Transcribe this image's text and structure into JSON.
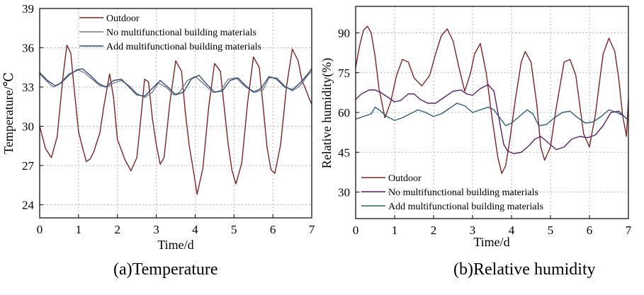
{
  "figure": {
    "caption_a": "(a)Temperature",
    "caption_b": "(b)Relative humidity"
  },
  "colors": {
    "outdoor": "#7b2626",
    "no_materials_a": "#7a7a8a",
    "add_materials_a": "#2e4a78",
    "no_materials_b": "#5c1f6e",
    "add_materials_b": "#2f5f73",
    "grid": "#b5b5b5"
  },
  "chart_data": [
    {
      "type": "line",
      "title": "",
      "xlabel": "Time/d",
      "ylabel": "Temperature/℃",
      "xlim": [
        0,
        7
      ],
      "ylim": [
        23,
        39
      ],
      "xticks": [
        "0",
        "1",
        "2",
        "3",
        "4",
        "5",
        "6",
        "7"
      ],
      "yticks": [
        "24",
        "27",
        "30",
        "33",
        "36",
        "39"
      ],
      "grid": true,
      "legend_position": "top-center",
      "series": [
        {
          "name": "Outdoor",
          "x": [
            0,
            0.15,
            0.3,
            0.45,
            0.6,
            0.7,
            0.8,
            0.9,
            1.0,
            1.1,
            1.2,
            1.3,
            1.4,
            1.45,
            1.55,
            1.65,
            1.8,
            1.9,
            2.0,
            2.1,
            2.2,
            2.35,
            2.5,
            2.6,
            2.7,
            2.8,
            2.9,
            3.0,
            3.1,
            3.2,
            3.35,
            3.5,
            3.65,
            3.75,
            3.85,
            3.95,
            4.05,
            4.2,
            4.35,
            4.5,
            4.65,
            4.75,
            4.85,
            4.95,
            5.05,
            5.2,
            5.35,
            5.5,
            5.65,
            5.75,
            5.85,
            5.95,
            6.05,
            6.2,
            6.35,
            6.5,
            6.65,
            6.75,
            6.85,
            6.95,
            7.0
          ],
          "values": [
            30.0,
            28.3,
            27.6,
            29.2,
            33.8,
            36.2,
            35.6,
            32.5,
            29.6,
            28.4,
            27.3,
            27.5,
            28.1,
            28.6,
            29.5,
            31.5,
            34.0,
            32.2,
            29.0,
            28.2,
            27.4,
            26.6,
            27.6,
            30.5,
            33.6,
            33.4,
            30.6,
            28.6,
            27.1,
            27.6,
            31.8,
            35.0,
            34.2,
            31.0,
            28.5,
            26.7,
            24.8,
            26.8,
            31.5,
            34.8,
            34.2,
            31.4,
            28.6,
            26.6,
            25.6,
            27.2,
            31.8,
            35.3,
            34.5,
            31.5,
            28.4,
            26.7,
            26.4,
            28.6,
            33.0,
            35.9,
            35.0,
            33.5,
            32.8,
            32.0,
            31.7
          ]
        },
        {
          "name": "No multifunctional building materials",
          "x": [
            0,
            0.2,
            0.35,
            0.5,
            0.75,
            1.0,
            1.15,
            1.35,
            1.55,
            1.75,
            1.9,
            2.1,
            2.3,
            2.5,
            2.7,
            2.9,
            3.05,
            3.25,
            3.45,
            3.6,
            3.8,
            4.0,
            4.2,
            4.45,
            4.65,
            4.85,
            5.05,
            5.3,
            5.55,
            5.75,
            5.9,
            6.1,
            6.3,
            6.5,
            6.7,
            6.9,
            7.0
          ],
          "values": [
            34.0,
            33.4,
            33.0,
            33.2,
            34.0,
            34.3,
            34.1,
            33.6,
            33.1,
            33.0,
            33.3,
            33.5,
            33.1,
            32.5,
            32.2,
            32.6,
            33.3,
            33.0,
            32.4,
            32.6,
            33.5,
            33.8,
            33.3,
            32.6,
            32.7,
            33.6,
            33.7,
            33.0,
            32.6,
            32.8,
            33.7,
            33.7,
            33.1,
            32.7,
            33.1,
            33.9,
            34.2
          ]
        },
        {
          "name": "Add multifunctional building materials",
          "x": [
            0,
            0.2,
            0.4,
            0.55,
            0.75,
            0.95,
            1.1,
            1.3,
            1.5,
            1.7,
            1.9,
            2.1,
            2.3,
            2.5,
            2.7,
            2.9,
            3.1,
            3.3,
            3.5,
            3.7,
            3.9,
            4.1,
            4.3,
            4.5,
            4.7,
            4.9,
            5.1,
            5.3,
            5.5,
            5.7,
            5.9,
            6.1,
            6.3,
            6.5,
            6.7,
            6.9,
            7.0
          ],
          "values": [
            34.1,
            33.5,
            33.1,
            33.3,
            33.9,
            34.3,
            34.4,
            33.9,
            33.3,
            33.0,
            33.5,
            33.6,
            33.0,
            32.4,
            32.3,
            32.9,
            33.5,
            33.0,
            32.4,
            32.6,
            33.6,
            33.9,
            33.2,
            32.6,
            32.7,
            33.5,
            33.7,
            33.1,
            32.6,
            32.9,
            33.8,
            33.6,
            33.0,
            32.8,
            33.3,
            34.0,
            34.4
          ]
        }
      ]
    },
    {
      "type": "line",
      "title": "",
      "xlabel": "Time/d",
      "ylabel": "Relative humidity(%)",
      "xlim": [
        0,
        7
      ],
      "ylim": [
        20,
        100
      ],
      "xticks": [
        "0",
        "1",
        "2",
        "3",
        "4",
        "5",
        "6",
        "7"
      ],
      "yticks": [
        "30",
        "45",
        "60",
        "75",
        "90"
      ],
      "grid": true,
      "legend_position": "bottom-center",
      "series": [
        {
          "name": "Outdoor",
          "x": [
            0,
            0.1,
            0.2,
            0.3,
            0.4,
            0.5,
            0.6,
            0.75,
            0.9,
            1.05,
            1.2,
            1.35,
            1.5,
            1.7,
            1.9,
            2.05,
            2.2,
            2.35,
            2.5,
            2.65,
            2.8,
            2.95,
            3.05,
            3.2,
            3.35,
            3.5,
            3.65,
            3.75,
            3.85,
            3.95,
            4.1,
            4.25,
            4.35,
            4.5,
            4.65,
            4.75,
            4.85,
            5.0,
            5.15,
            5.35,
            5.5,
            5.65,
            5.75,
            5.85,
            6.0,
            6.15,
            6.35,
            6.5,
            6.65,
            6.75,
            6.85,
            6.95,
            7.0
          ],
          "values": [
            77,
            85,
            91,
            92.5,
            90,
            81,
            69,
            58,
            64,
            74,
            80,
            79,
            73,
            70,
            74,
            82,
            89,
            91.5,
            87,
            77,
            68,
            75,
            82,
            86,
            75,
            58,
            43,
            37,
            40,
            49,
            65,
            79,
            83,
            79,
            63,
            47,
            42,
            47,
            62,
            79,
            80,
            74,
            63,
            52,
            47,
            59,
            82,
            88,
            83,
            73,
            59,
            51,
            65
          ]
        },
        {
          "name": "No multifunctional building materials",
          "x": [
            0,
            0.15,
            0.35,
            0.5,
            0.65,
            0.8,
            1.0,
            1.15,
            1.35,
            1.5,
            1.65,
            1.85,
            2.05,
            2.3,
            2.5,
            2.7,
            2.85,
            3.0,
            3.2,
            3.4,
            3.55,
            3.7,
            3.8,
            3.9,
            4.05,
            4.25,
            4.45,
            4.6,
            4.75,
            4.95,
            5.15,
            5.35,
            5.55,
            5.75,
            5.95,
            6.15,
            6.35,
            6.55,
            6.75,
            7.0
          ],
          "values": [
            65,
            67,
            68.5,
            68.5,
            67.5,
            66,
            64,
            64.5,
            67,
            67,
            65,
            63.5,
            63.5,
            66,
            68,
            68.5,
            67,
            66.5,
            69,
            70.5,
            68,
            56,
            48,
            45.5,
            44.5,
            45,
            47.5,
            50,
            51,
            48.5,
            46,
            47,
            50,
            51,
            50.5,
            51.5,
            55,
            60,
            60.5,
            57
          ]
        },
        {
          "name": "Add multifunctional building materials",
          "x": [
            0,
            0.2,
            0.4,
            0.5,
            0.6,
            0.8,
            1.0,
            1.2,
            1.4,
            1.6,
            1.8,
            2.0,
            2.2,
            2.4,
            2.6,
            2.8,
            3.0,
            3.2,
            3.4,
            3.55,
            3.7,
            3.85,
            4.0,
            4.2,
            4.4,
            4.55,
            4.7,
            4.9,
            5.1,
            5.3,
            5.5,
            5.7,
            5.9,
            6.1,
            6.3,
            6.5,
            6.7,
            6.9,
            7.0
          ],
          "values": [
            57.5,
            58.5,
            59.5,
            62,
            61,
            58.5,
            57,
            58,
            59.5,
            61,
            60,
            58.5,
            59.5,
            61.5,
            63.5,
            62.5,
            60,
            61,
            62,
            61,
            58,
            55,
            56,
            58.5,
            61,
            59.5,
            55,
            55.5,
            58,
            60,
            60.5,
            58,
            56,
            56.5,
            58.5,
            61,
            60,
            58.5,
            57
          ]
        }
      ]
    }
  ]
}
